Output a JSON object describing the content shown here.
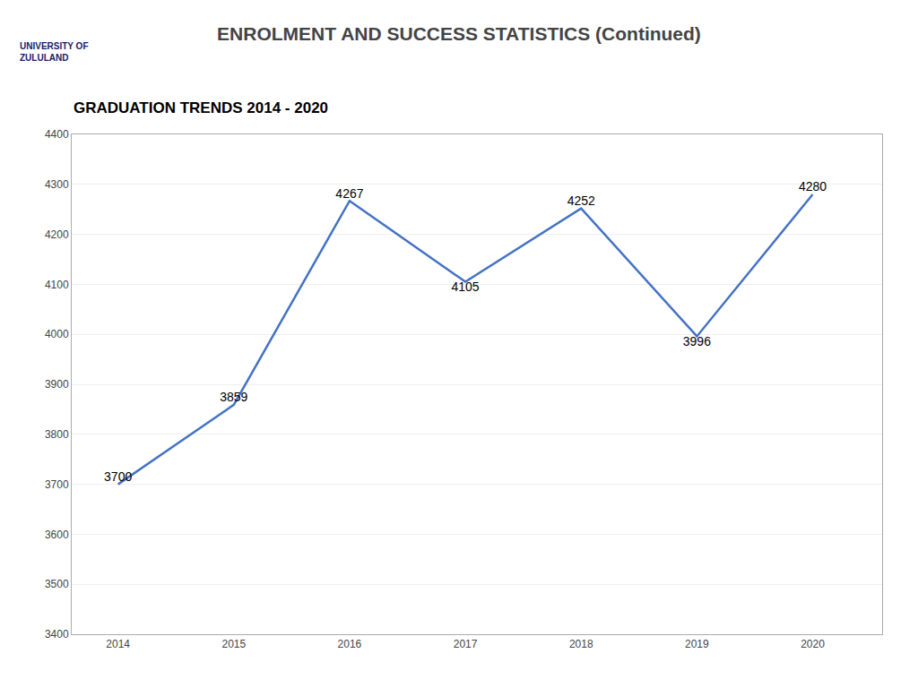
{
  "chart_data": {
    "type": "line",
    "title": "ENROLMENT AND SUCCESS STATISTICS (Continued)",
    "subtitle": "GRADUATION TRENDS 2014 - 2020",
    "annotations": [
      "UNIVERSITY OF",
      "ZULULAND"
    ],
    "x": [
      2014,
      2015,
      2016,
      2017,
      2018,
      2019,
      2020
    ],
    "values": [
      3700,
      3859,
      4267,
      4105,
      4252,
      3996,
      4280
    ],
    "color": "#4472C4",
    "xlim": [
      2013.6,
      2020.6
    ],
    "xticks": [
      2014,
      2015,
      2016,
      2017,
      2018,
      2019,
      2020
    ],
    "ylim": [
      3400,
      4400
    ],
    "yticks": [
      3400,
      3500,
      3600,
      3700,
      3800,
      3900,
      4000,
      4100,
      4200,
      4300,
      4400
    ],
    "grid": "y",
    "data_labels": true
  }
}
